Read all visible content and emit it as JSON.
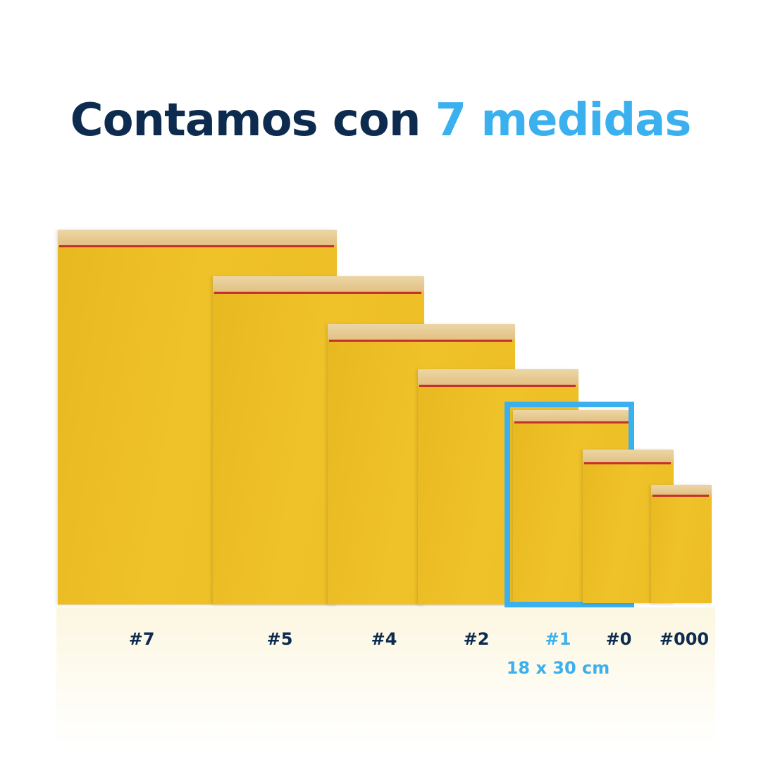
{
  "headline": {
    "text_dark": "Contamos con ",
    "text_accent": "7 medidas"
  },
  "colors": {
    "dark_blue": "#0d2b4e",
    "accent_blue": "#3bb0ee",
    "envelope_yellow": "#f0c22a",
    "seal_red": "#c5302a"
  },
  "sizes": [
    {
      "label": "#7"
    },
    {
      "label": "#5"
    },
    {
      "label": "#4"
    },
    {
      "label": "#2"
    },
    {
      "label": "#1",
      "highlighted": true,
      "dimensions": "18 x 30 cm"
    },
    {
      "label": "#0"
    },
    {
      "label": "#000"
    }
  ]
}
